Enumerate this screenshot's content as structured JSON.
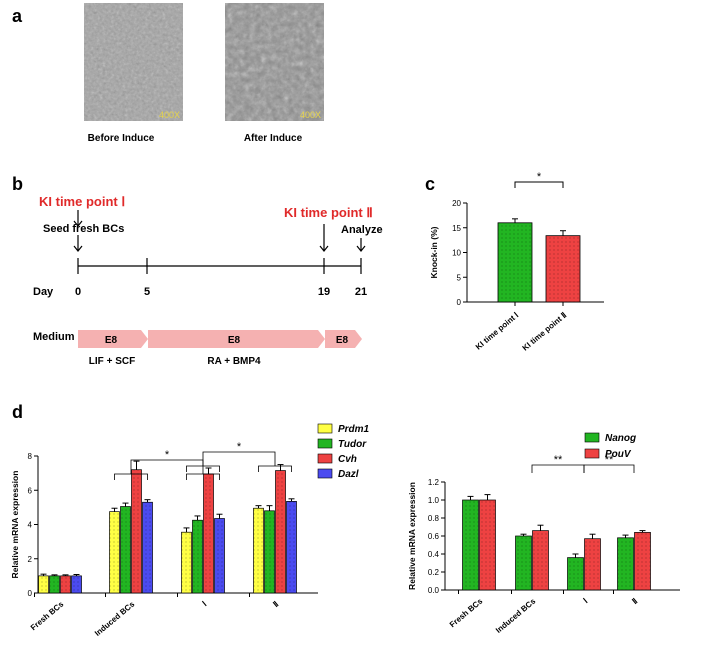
{
  "panel_labels": {
    "a": "a",
    "b": "b",
    "c": "c",
    "d": "d"
  },
  "panel_a": {
    "magnification": "400X",
    "caption_left": "Before Induce",
    "caption_right": "After Induce"
  },
  "panel_b": {
    "ki1": "KI time point Ⅰ",
    "ki2": "KI time point Ⅱ",
    "seed": "Seed fresh BCs",
    "analyze": "Analyze",
    "day_label": "Day",
    "days": [
      "0",
      "5",
      "19",
      "21"
    ],
    "medium_label": "Medium",
    "media": [
      "E8",
      "E8",
      "E8"
    ],
    "supplements": [
      "LIF + SCF",
      "RA + BMP4"
    ],
    "medium_color": "#f5b1b1"
  },
  "chart_data": [
    {
      "id": "c",
      "type": "bar",
      "categories": [
        "KI time point Ⅰ",
        "KI time point Ⅱ"
      ],
      "values": [
        16.0,
        13.4
      ],
      "errors": [
        0.8,
        1.0
      ],
      "colors": [
        "#22b522",
        "#ee4242"
      ],
      "ylabel": "Knock-in (%)",
      "ylim": [
        0,
        20
      ],
      "yticks": [
        "0",
        "5",
        "10",
        "15",
        "20"
      ],
      "significance": [
        "*"
      ]
    },
    {
      "id": "d1",
      "type": "bar",
      "categories": [
        "Fresh BCs",
        "Induced BCs",
        "Ⅰ",
        "Ⅱ"
      ],
      "series": [
        {
          "name": "Prdm1",
          "color": "#ffff44",
          "values": [
            1.0,
            4.75,
            3.55,
            4.95
          ],
          "errors": [
            0.1,
            0.2,
            0.25,
            0.15
          ]
        },
        {
          "name": "Tudor",
          "color": "#22b522",
          "values": [
            1.0,
            5.05,
            4.25,
            4.8
          ],
          "errors": [
            0.06,
            0.2,
            0.25,
            0.3
          ]
        },
        {
          "name": "Cvh",
          "color": "#ee4242",
          "values": [
            1.0,
            7.2,
            6.95,
            7.15
          ],
          "errors": [
            0.06,
            0.5,
            0.35,
            0.35
          ]
        },
        {
          "name": "Dazl",
          "color": "#4b4bf0",
          "values": [
            1.0,
            5.3,
            4.35,
            5.35
          ],
          "errors": [
            0.08,
            0.15,
            0.25,
            0.15
          ]
        }
      ],
      "ylabel": "Relative mRNA expression",
      "ylim": [
        0,
        8
      ],
      "yticks": [
        "0",
        "2",
        "4",
        "6",
        "8"
      ],
      "significance": [
        "*",
        "*"
      ]
    },
    {
      "id": "d2",
      "type": "bar",
      "categories": [
        "Fresh BCs",
        "Induced BCs",
        "Ⅰ",
        "Ⅱ"
      ],
      "series": [
        {
          "name": "Nanog",
          "color": "#22b522",
          "values": [
            1.0,
            0.6,
            0.36,
            0.58
          ],
          "errors": [
            0.04,
            0.02,
            0.04,
            0.03
          ]
        },
        {
          "name": "PouV",
          "color": "#ee4242",
          "values": [
            1.0,
            0.66,
            0.57,
            0.64
          ],
          "errors": [
            0.06,
            0.06,
            0.05,
            0.02
          ]
        }
      ],
      "ylabel": "Relative mRNA expression",
      "ylim": [
        0,
        1.2
      ],
      "yticks": [
        "0.0",
        "0.2",
        "0.4",
        "0.6",
        "0.8",
        "1.0",
        "1.2"
      ],
      "significance": [
        "**",
        "**"
      ]
    }
  ]
}
